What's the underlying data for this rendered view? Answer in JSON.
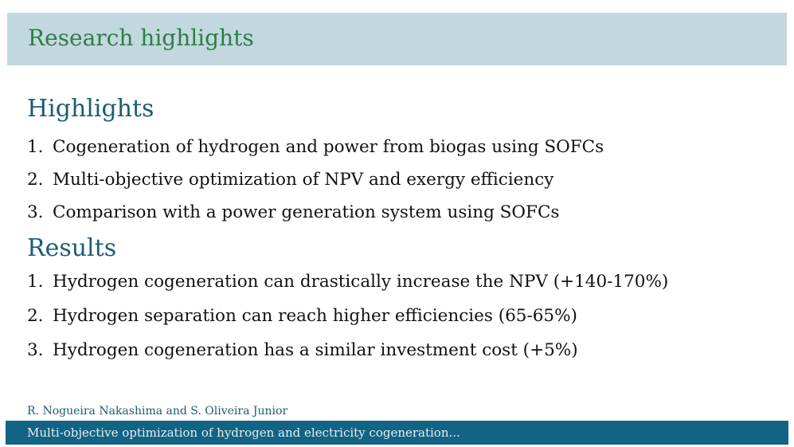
{
  "frame": {
    "title": "Research highlights"
  },
  "highlights": {
    "heading": "Highlights",
    "items": [
      {
        "num": "1.",
        "text": "Cogeneration of hydrogen and power from biogas using SOFCs"
      },
      {
        "num": "2.",
        "text": "Multi-objective optimization of NPV and exergy efficiency"
      },
      {
        "num": "3.",
        "text": "Comparison with a power generation system using SOFCs"
      }
    ]
  },
  "results": {
    "heading": "Results",
    "items": [
      {
        "num": "1.",
        "text": "Hydrogen cogeneration can drastically increase the NPV (+140-170%)"
      },
      {
        "num": "2.",
        "text": "Hydrogen separation can reach higher efficiencies (65-65%)"
      },
      {
        "num": "3.",
        "text": "Hydrogen cogeneration has a similar investment cost (+5%)"
      }
    ]
  },
  "footer": {
    "authors": "R. Nogueira Nakashima and S. Oliveira Junior",
    "short_title": "Multi-objective optimization of hydrogen and electricity cogeneration..."
  },
  "colors": {
    "title_bar": "#c2d8df",
    "title_text": "#2e7d46",
    "heading_text": "#1d5b73",
    "footer_bar": "#136385"
  }
}
